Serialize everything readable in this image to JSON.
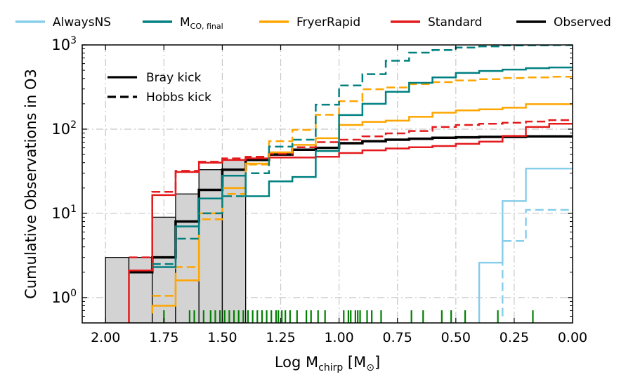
{
  "chart_data": {
    "type": "step",
    "xlabel": "Log M",
    "xlabel_sub": "chirp",
    "xlabel_unit": "[M",
    "xlabel_unit_sub": "⊙",
    "xlabel_unit_close": "]",
    "ylabel": "Cumulative Observations in O3",
    "xlim": [
      2.1,
      0.0
    ],
    "ylim": [
      0.5,
      1000
    ],
    "yscale": "log",
    "x_ticks": [
      2.0,
      1.75,
      1.5,
      1.25,
      1.0,
      0.75,
      0.5,
      0.25,
      0.0
    ],
    "x_tick_labels": [
      "2.00",
      "1.75",
      "1.50",
      "1.25",
      "1.00",
      "0.75",
      "0.50",
      "0.25",
      "0.00"
    ],
    "y_ticks": [
      1,
      10,
      100,
      1000
    ],
    "y_tick_labels": [
      {
        "base": "10",
        "exp": "0"
      },
      {
        "base": "10",
        "exp": "1"
      },
      {
        "base": "10",
        "exp": "2"
      },
      {
        "base": "10",
        "exp": "3"
      }
    ],
    "grid": true,
    "legend_top": [
      {
        "label": "AlwaysNS",
        "sub": "",
        "color": "#87ceeb"
      },
      {
        "label": "M",
        "sub": "CO, final",
        "color": "#008080"
      },
      {
        "label": "FryerRapid",
        "sub": "",
        "color": "#ffa500"
      },
      {
        "label": "Standard",
        "sub": "",
        "color": "#e41a1c"
      },
      {
        "label": "Observed",
        "sub": "",
        "color": "#000000"
      }
    ],
    "legend_inner": [
      {
        "label": "Bray kick",
        "style": "solid"
      },
      {
        "label": "Hobbs kick",
        "style": "dashed"
      }
    ],
    "observed_hist": {
      "edges": [
        2.0,
        1.9,
        1.8,
        1.7,
        1.6,
        1.5,
        1.4
      ],
      "values": [
        3,
        3,
        9,
        17,
        33,
        43
      ]
    },
    "series": [
      {
        "model": "Observed",
        "kick": "Bray",
        "color": "#000000",
        "width": 3.5,
        "points": [
          [
            1.9,
            2
          ],
          [
            1.8,
            3
          ],
          [
            1.7,
            8
          ],
          [
            1.6,
            19
          ],
          [
            1.5,
            33
          ],
          [
            1.4,
            43
          ],
          [
            1.3,
            50
          ],
          [
            1.2,
            57
          ],
          [
            1.1,
            60
          ],
          [
            1.0,
            68
          ],
          [
            0.9,
            72
          ],
          [
            0.8,
            75
          ],
          [
            0.7,
            77
          ],
          [
            0.6,
            79
          ],
          [
            0.5,
            80
          ],
          [
            0.4,
            81
          ],
          [
            0.3,
            81
          ],
          [
            0.2,
            82
          ],
          [
            0.1,
            82
          ],
          [
            0.0,
            82
          ]
        ]
      },
      {
        "model": "Standard",
        "kick": "Bray",
        "color": "#e41a1c",
        "width": 2.5,
        "points": [
          [
            1.9,
            0.5
          ],
          [
            1.9,
            2.1
          ],
          [
            1.8,
            16.5
          ],
          [
            1.7,
            31
          ],
          [
            1.6,
            40
          ],
          [
            1.5,
            43
          ],
          [
            1.4,
            45
          ],
          [
            1.3,
            46
          ],
          [
            1.2,
            46
          ],
          [
            1.1,
            47
          ],
          [
            1.0,
            52
          ],
          [
            0.9,
            56
          ],
          [
            0.8,
            59
          ],
          [
            0.7,
            61
          ],
          [
            0.6,
            63
          ],
          [
            0.5,
            67
          ],
          [
            0.4,
            71
          ],
          [
            0.3,
            83
          ],
          [
            0.2,
            106
          ],
          [
            0.1,
            116
          ],
          [
            0.0,
            116
          ]
        ]
      },
      {
        "model": "Standard",
        "kick": "Hobbs",
        "color": "#e41a1c",
        "width": 2.5,
        "points": [
          [
            1.9,
            3.0
          ],
          [
            1.8,
            18
          ],
          [
            1.7,
            32
          ],
          [
            1.6,
            41
          ],
          [
            1.5,
            45
          ],
          [
            1.4,
            47
          ],
          [
            1.3,
            51
          ],
          [
            1.2,
            61
          ],
          [
            1.1,
            70
          ],
          [
            1.0,
            75
          ],
          [
            0.9,
            82
          ],
          [
            0.8,
            89
          ],
          [
            0.7,
            95
          ],
          [
            0.6,
            106
          ],
          [
            0.5,
            112
          ],
          [
            0.4,
            116
          ],
          [
            0.3,
            119
          ],
          [
            0.2,
            123
          ],
          [
            0.1,
            128
          ],
          [
            0.0,
            128
          ]
        ]
      },
      {
        "model": "FryerRapid",
        "kick": "Bray",
        "color": "#ffa500",
        "width": 2.5,
        "points": [
          [
            1.8,
            0.65
          ],
          [
            1.8,
            0.8
          ],
          [
            1.7,
            1.6
          ],
          [
            1.6,
            10
          ],
          [
            1.5,
            20
          ],
          [
            1.4,
            39
          ],
          [
            1.3,
            53
          ],
          [
            1.2,
            65
          ],
          [
            1.1,
            78
          ],
          [
            1.0,
            112
          ],
          [
            0.9,
            122
          ],
          [
            0.8,
            126
          ],
          [
            0.7,
            140
          ],
          [
            0.6,
            157
          ],
          [
            0.5,
            167
          ],
          [
            0.4,
            172
          ],
          [
            0.3,
            180
          ],
          [
            0.2,
            198
          ],
          [
            0.1,
            198
          ],
          [
            0.0,
            198
          ]
        ]
      },
      {
        "model": "FryerRapid",
        "kick": "Hobbs",
        "color": "#ffa500",
        "width": 2.5,
        "points": [
          [
            1.8,
            1.05
          ],
          [
            1.7,
            2.3
          ],
          [
            1.6,
            8.5
          ],
          [
            1.5,
            17
          ],
          [
            1.4,
            38
          ],
          [
            1.3,
            72
          ],
          [
            1.2,
            98
          ],
          [
            1.1,
            148
          ],
          [
            1.0,
            215
          ],
          [
            0.9,
            298
          ],
          [
            0.8,
            312
          ],
          [
            0.7,
            342
          ],
          [
            0.6,
            362
          ],
          [
            0.5,
            378
          ],
          [
            0.4,
            392
          ],
          [
            0.3,
            405
          ],
          [
            0.2,
            412
          ],
          [
            0.1,
            420
          ],
          [
            0.0,
            420
          ]
        ]
      },
      {
        "model": "MCO",
        "kick": "Bray",
        "color": "#008080",
        "width": 2.5,
        "points": [
          [
            1.8,
            2.3
          ],
          [
            1.7,
            7.0
          ],
          [
            1.6,
            15
          ],
          [
            1.5,
            28
          ],
          [
            1.4,
            16
          ],
          [
            1.3,
            24
          ],
          [
            1.2,
            27
          ],
          [
            1.1,
            55
          ],
          [
            1.0,
            147
          ],
          [
            0.9,
            200
          ],
          [
            0.8,
            278
          ],
          [
            0.7,
            355
          ],
          [
            0.6,
            412
          ],
          [
            0.5,
            465
          ],
          [
            0.4,
            490
          ],
          [
            0.3,
            510
          ],
          [
            0.2,
            530
          ],
          [
            0.1,
            540
          ],
          [
            0.0,
            540
          ]
        ]
      },
      {
        "model": "MCO",
        "kick": "Hobbs",
        "color": "#008080",
        "width": 2.5,
        "points": [
          [
            1.8,
            2.5
          ],
          [
            1.7,
            5.0
          ],
          [
            1.6,
            10
          ],
          [
            1.5,
            16
          ],
          [
            1.4,
            30
          ],
          [
            1.3,
            62
          ],
          [
            1.2,
            75
          ],
          [
            1.1,
            195
          ],
          [
            1.0,
            330
          ],
          [
            0.9,
            450
          ],
          [
            0.8,
            650
          ],
          [
            0.7,
            810
          ],
          [
            0.6,
            870
          ],
          [
            0.5,
            930
          ],
          [
            0.4,
            960
          ],
          [
            0.3,
            985
          ],
          [
            0.2,
            990
          ],
          [
            0.1,
            995
          ],
          [
            0.0,
            995
          ]
        ]
      },
      {
        "model": "AlwaysNS",
        "kick": "Bray",
        "color": "#87ceeb",
        "width": 2.5,
        "points": [
          [
            0.4,
            0.5
          ],
          [
            0.4,
            2.6
          ],
          [
            0.3,
            14
          ],
          [
            0.2,
            34
          ],
          [
            0.1,
            34
          ],
          [
            0.0,
            34
          ]
        ]
      },
      {
        "model": "AlwaysNS",
        "kick": "Hobbs",
        "color": "#87ceeb",
        "width": 2.5,
        "points": [
          [
            0.3,
            0.6
          ],
          [
            0.3,
            4.7
          ],
          [
            0.2,
            11
          ],
          [
            0.1,
            11
          ],
          [
            0.0,
            11
          ]
        ]
      }
    ],
    "rug": [
      1.75,
      1.64,
      1.62,
      1.58,
      1.55,
      1.53,
      1.51,
      1.49,
      1.47,
      1.45,
      1.43,
      1.41,
      1.39,
      1.37,
      1.35,
      1.33,
      1.31,
      1.29,
      1.27,
      1.26,
      1.245,
      1.23,
      1.21,
      1.18,
      1.14,
      1.12,
      1.09,
      1.06,
      0.98,
      0.96,
      0.95,
      0.93,
      0.92,
      0.91,
      0.88,
      0.86,
      0.82,
      0.69,
      0.64,
      0.56,
      0.52,
      0.46,
      0.32,
      0.17
    ],
    "rug_color": "#008000"
  }
}
